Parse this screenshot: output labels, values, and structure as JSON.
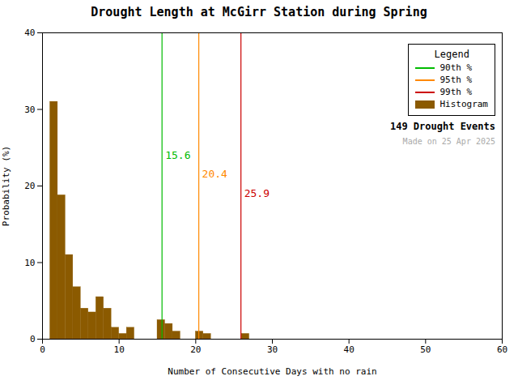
{
  "chart_data": {
    "type": "histogram",
    "title": "Drought Length at McGirr Station during Spring",
    "xlabel": "Number of Consecutive Days with no rain",
    "ylabel": "Probability (%)",
    "xlim": [
      0,
      60
    ],
    "ylim": [
      0,
      40
    ],
    "xticks": [
      0,
      10,
      20,
      30,
      40,
      50,
      60
    ],
    "yticks": [
      0,
      10,
      20,
      30,
      40
    ],
    "grid": false,
    "legend": "upper right",
    "legend_title": "Legend",
    "data_labels": true,
    "bins": [
      0,
      1,
      2,
      3,
      4,
      5,
      6,
      7,
      8,
      9,
      10,
      11,
      12,
      13,
      14,
      15,
      16,
      17,
      18,
      19,
      20,
      21,
      22,
      23,
      24,
      25,
      26,
      27,
      28,
      29,
      30,
      31,
      32,
      33,
      34,
      35,
      36,
      37,
      38,
      39,
      40,
      41,
      42,
      43,
      44,
      45,
      46,
      47,
      48,
      49,
      50,
      51,
      52,
      53,
      54,
      55,
      56,
      57,
      58,
      59,
      60,
      61
    ],
    "series": [
      {
        "name": "90th %",
        "type": "vline",
        "color": "#00bb00",
        "x": 15.6
      },
      {
        "name": "95th %",
        "type": "vline",
        "color": "#ff8800",
        "x": 20.4
      },
      {
        "name": "99th %",
        "type": "vline",
        "color": "#cc0000",
        "x": 25.9
      },
      {
        "name": "Histogram",
        "type": "bar",
        "color": "#8B5A00",
        "values": [
          0,
          31.0,
          18.8,
          11.0,
          6.8,
          4.0,
          3.5,
          5.5,
          4.0,
          1.5,
          0.7,
          1.5,
          0,
          0,
          0,
          2.5,
          2.0,
          1.0,
          0,
          0,
          1.0,
          0.7,
          0,
          0,
          0,
          0,
          0.7,
          0,
          0,
          0,
          0,
          0,
          0,
          0,
          0,
          0,
          0,
          0,
          0,
          0,
          0,
          0,
          0,
          0,
          0,
          0,
          0,
          0,
          0,
          0,
          0,
          0,
          0,
          0,
          0,
          0,
          0,
          0,
          0,
          0,
          0
        ]
      }
    ],
    "annotations": [
      {
        "text": "149 Drought Events"
      },
      {
        "text": "Made on 25 Apr 2025",
        "color": "#aaaaaa"
      }
    ]
  }
}
